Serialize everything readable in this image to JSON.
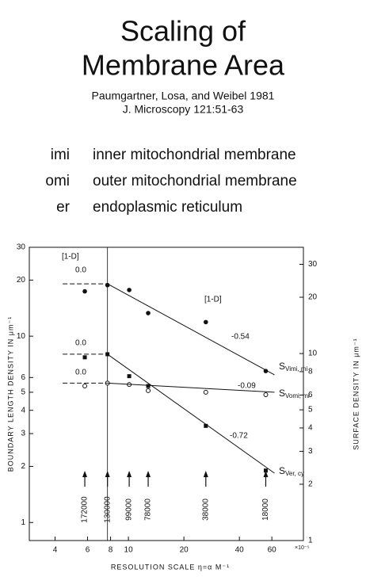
{
  "header": {
    "title_lines": [
      "Scaling of",
      "Membrane Area"
    ],
    "citation_lines": [
      "Paumgartner, Losa, and Weibel  1981",
      "J. Microscopy   121:51-63"
    ]
  },
  "abbreviations": [
    {
      "abbr": "imi",
      "text": "inner mitochondrial membrane"
    },
    {
      "abbr": "omi",
      "text": "outer mitochondrial membrane"
    },
    {
      "abbr": "er",
      "text": "endoplasmic reticulum"
    }
  ],
  "chart_data": {
    "type": "scatter",
    "log_scale": true,
    "x_label": "RESOLUTION  SCALE  η=α M⁻¹",
    "x_unit": "×10⁻⁵",
    "y_label": "BOUNDARY  LENGTH  DENSITY  IN  μm⁻¹",
    "y2_label": "SURFACE  DENSITY  IN  μm⁻¹",
    "xlim": [
      2.9,
      89
    ],
    "xticks": [
      4,
      6,
      8,
      10,
      20,
      40,
      60
    ],
    "ylim": [
      0.8,
      30
    ],
    "yticks": [
      1,
      2,
      3,
      4,
      5,
      6,
      10,
      20,
      30
    ],
    "y2lim": [
      1,
      37
    ],
    "y2ticks": [
      1,
      2,
      3,
      4,
      5,
      6,
      8,
      10,
      20,
      30
    ],
    "x": [
      5.8,
      7.7,
      10.1,
      12.8,
      26.3,
      55.6
    ],
    "resolution_labels": [
      "172000",
      "130000",
      "99000",
      "78000",
      "38000",
      "18000"
    ],
    "series": [
      {
        "name": "S",
        "subscript": "Vimi, mi",
        "marker": "dot",
        "color": "#111",
        "values": [
          17.4,
          18.8,
          17.7,
          13.3,
          11.9,
          6.5
        ],
        "fit_x": [
          4.4,
          7.7,
          62
        ],
        "fit_values": [
          19.1,
          19.1,
          6.2
        ],
        "slope_label": "-0.54",
        "level_label": "0.0"
      },
      {
        "name": "S",
        "subscript": "Vomi, mi",
        "marker": "circle",
        "color": "#111",
        "values": [
          5.4,
          5.6,
          5.5,
          5.1,
          5.0,
          4.85
        ],
        "fit_x": [
          4.4,
          7.7,
          62
        ],
        "fit_values": [
          5.6,
          5.6,
          5.0
        ],
        "slope_label": "-0.09",
        "level_label": "0.0"
      },
      {
        "name": "S",
        "subscript": "Ver, cy",
        "marker": "square",
        "color": "#111",
        "values": [
          7.7,
          8.0,
          6.1,
          5.4,
          3.3,
          1.9
        ],
        "fit_x": [
          4.4,
          7.7,
          62
        ],
        "fit_values": [
          8.0,
          8.0,
          1.84
        ],
        "slope_label": "-0.72",
        "level_label": "0.0"
      }
    ],
    "bracket_labels": [
      "[1-D]",
      "[1-D]"
    ]
  }
}
